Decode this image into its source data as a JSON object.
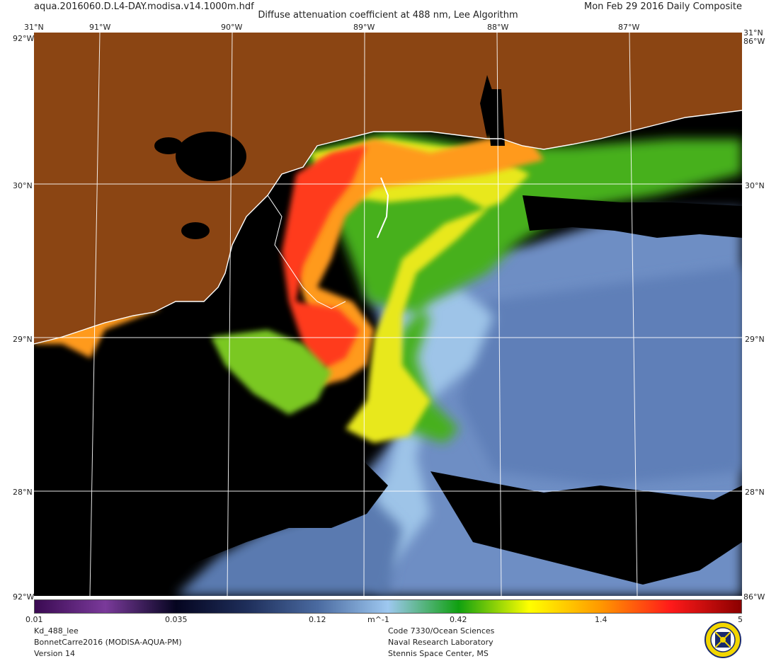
{
  "header": {
    "file_name": "aqua.2016060.D.L4-DAY.modisa.v14.1000m.hdf",
    "title": "Diffuse attenuation coefficient at 488 nm, Lee Algorithm",
    "date": "Mon Feb 29 2016 Daily Composite"
  },
  "map": {
    "top_lon_labels": [
      "91°W",
      "90°W",
      "89°W",
      "88°W",
      "87°W"
    ],
    "lat_labels": [
      "30°N",
      "29°N",
      "28°N"
    ],
    "corner_top_left": "31°N",
    "corner_top_right": "31°N",
    "edge_top_left": "92°W",
    "edge_top_right": "86°W",
    "edge_bottom_left": "92°W",
    "edge_bottom_right": "86°W",
    "land_color": "#8b4513",
    "nodata_color": "#000000",
    "coast_color": "#ffffff"
  },
  "colorbar": {
    "tick_labels": [
      "0.01",
      "0.035",
      "0.12",
      "0.42",
      "1.4",
      "5"
    ],
    "unit": "m^-1",
    "stops": [
      "#3a0a52",
      "#7a3a9a",
      "#050520",
      "#1e2e5a",
      "#4a6aa0",
      "#9ec8f0",
      "#10a010",
      "#ffff00",
      "#ff9900",
      "#ff1a1a",
      "#8b0000"
    ]
  },
  "footer": {
    "left": [
      "Kd_488_lee",
      "BonnetCarre2016 (MODISA-AQUA-PM)",
      "Version 14"
    ],
    "center": [
      "Code 7330/Ocean Sciences",
      "Naval Research Laboratory",
      "Stennis Space Center, MS"
    ]
  },
  "logo": {
    "icon": "nrl-seal-icon"
  }
}
